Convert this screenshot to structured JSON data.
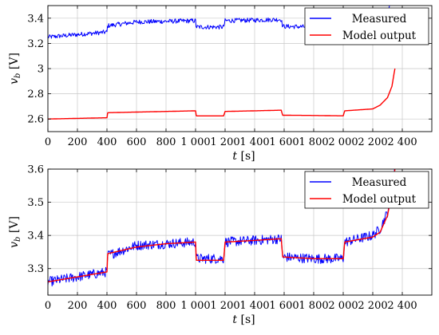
{
  "chart_data": [
    {
      "type": "line",
      "xlabel": "t [s]",
      "ylabel": "v_b [V]",
      "xlim": [
        0,
        2600
      ],
      "ylim": [
        2.5,
        3.5
      ],
      "xticks": [
        0,
        200,
        400,
        600,
        800,
        1000,
        1200,
        1400,
        1600,
        1800,
        2000,
        2200,
        2400
      ],
      "xtick_labels": [
        "0",
        "200",
        "400",
        "600",
        "800",
        "1 000",
        "1 200",
        "1 400",
        "1 600",
        "1 800",
        "2 000",
        "2 200",
        "2 400"
      ],
      "yticks": [
        2.6,
        2.8,
        3.0,
        3.2,
        3.4
      ],
      "ytick_labels": [
        "2.6",
        "2.8",
        "3",
        "3.2",
        "3.4"
      ],
      "grid": true,
      "legend_position": "top-right",
      "series": [
        {
          "name": "Measured",
          "color": "#0000ff",
          "noise": 0.018,
          "x": [
            0,
            400,
            405,
            600,
            800,
            1000,
            1005,
            1190,
            1200,
            1400,
            1580,
            1590,
            1800,
            2000,
            2010,
            2200,
            2300,
            2350
          ],
          "y": [
            3.25,
            3.29,
            3.34,
            3.37,
            3.375,
            3.38,
            3.33,
            3.33,
            3.38,
            3.385,
            3.39,
            3.335,
            3.33,
            3.33,
            3.38,
            3.4,
            3.45,
            3.6
          ]
        },
        {
          "name": "Model output",
          "color": "#ff0000",
          "noise": 0,
          "x": [
            0,
            400,
            405,
            600,
            800,
            1000,
            1005,
            1190,
            1200,
            1400,
            1580,
            1590,
            1800,
            2000,
            2010,
            2200,
            2250,
            2300,
            2330,
            2350
          ],
          "y": [
            2.6,
            2.61,
            2.65,
            2.655,
            2.66,
            2.665,
            2.625,
            2.625,
            2.66,
            2.665,
            2.67,
            2.63,
            2.628,
            2.625,
            2.665,
            2.68,
            2.71,
            2.77,
            2.86,
            3.0
          ]
        }
      ]
    },
    {
      "type": "line",
      "xlabel": "t [s]",
      "ylabel": "v_b [V]",
      "xlim": [
        0,
        2600
      ],
      "ylim": [
        3.22,
        3.6
      ],
      "xticks": [
        0,
        200,
        400,
        600,
        800,
        1000,
        1200,
        1400,
        1600,
        1800,
        2000,
        2200,
        2400
      ],
      "xtick_labels": [
        "0",
        "200",
        "400",
        "600",
        "800",
        "1 000",
        "1 200",
        "1 400",
        "1 600",
        "1 800",
        "2 000",
        "2 200",
        "2 400"
      ],
      "yticks": [
        3.3,
        3.4,
        3.5,
        3.6
      ],
      "ytick_labels": [
        "3.3",
        "3.4",
        "3.5",
        "3.6"
      ],
      "grid": true,
      "legend_position": "top-right",
      "series": [
        {
          "name": "Measured",
          "color": "#0000ff",
          "noise": 0.015,
          "x": [
            0,
            400,
            405,
            600,
            800,
            1000,
            1005,
            1190,
            1200,
            1400,
            1580,
            1590,
            1800,
            2000,
            2010,
            2200,
            2250,
            2300,
            2350
          ],
          "y": [
            3.26,
            3.29,
            3.34,
            3.37,
            3.375,
            3.38,
            3.33,
            3.33,
            3.38,
            3.385,
            3.39,
            3.335,
            3.33,
            3.33,
            3.38,
            3.4,
            3.42,
            3.47,
            3.6
          ]
        },
        {
          "name": "Model output",
          "color": "#ff0000",
          "noise": 0,
          "x": [
            0,
            400,
            405,
            600,
            800,
            1000,
            1005,
            1190,
            1200,
            1400,
            1580,
            1590,
            1800,
            2000,
            2010,
            2200,
            2250,
            2300,
            2330,
            2350
          ],
          "y": [
            3.26,
            3.29,
            3.345,
            3.365,
            3.375,
            3.38,
            3.325,
            3.325,
            3.38,
            3.385,
            3.39,
            3.335,
            3.33,
            3.33,
            3.38,
            3.395,
            3.41,
            3.46,
            3.53,
            3.6
          ]
        }
      ]
    }
  ]
}
